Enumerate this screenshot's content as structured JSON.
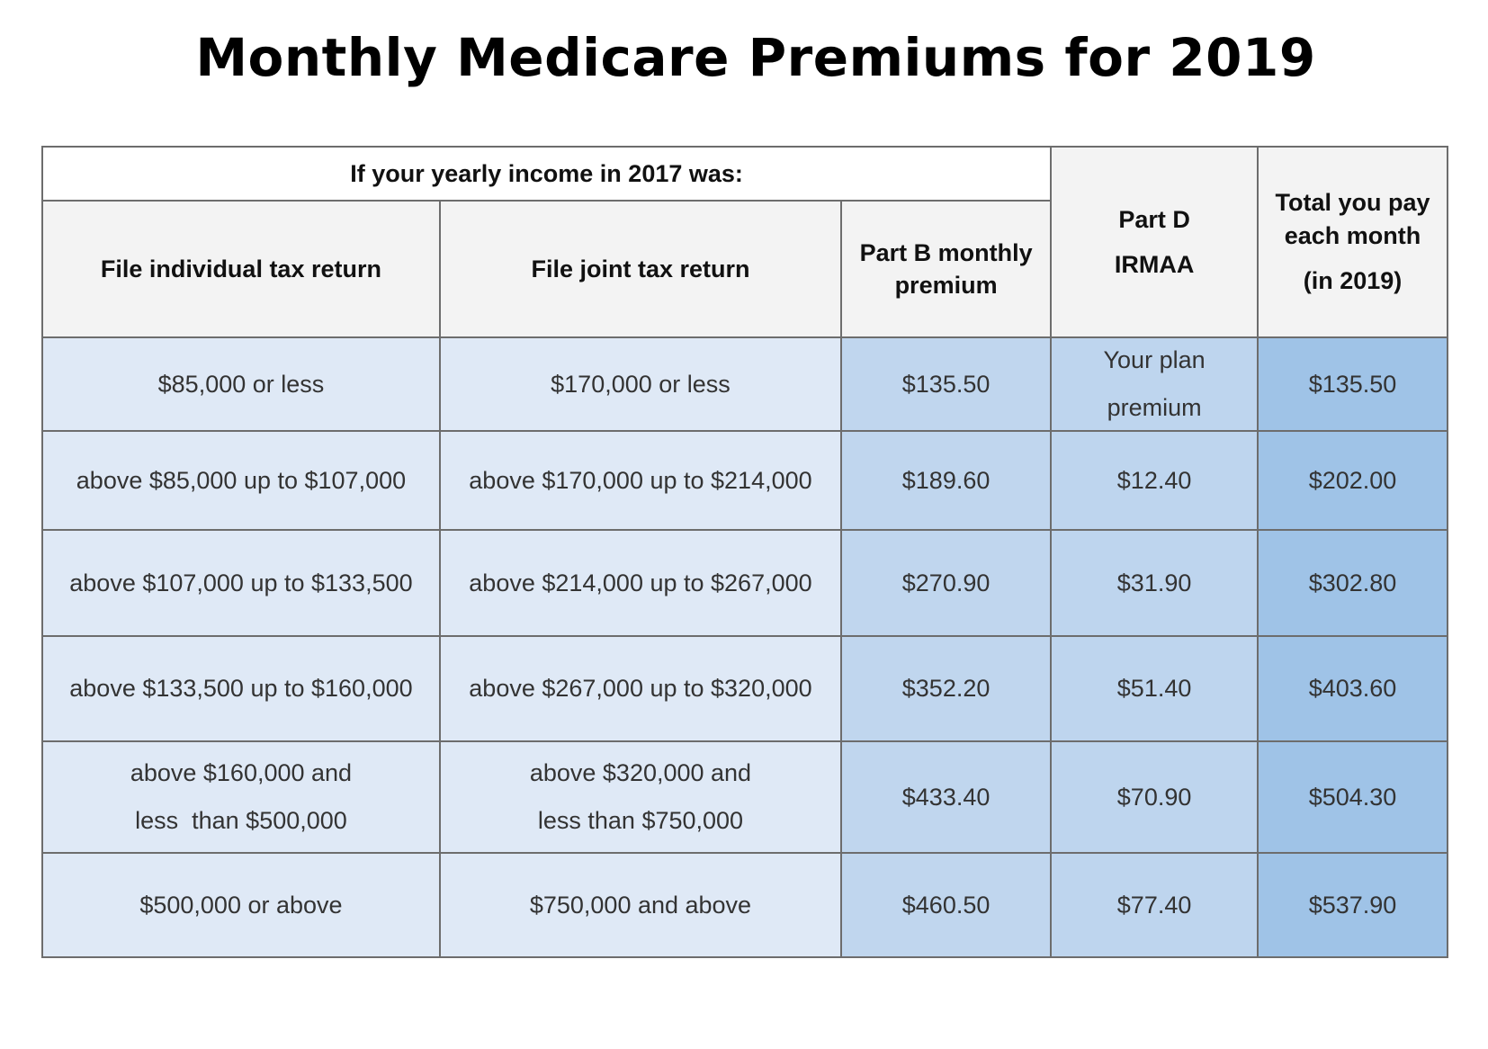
{
  "title": "Monthly Medicare Premiums for 2019",
  "table": {
    "income_group_header": "If your yearly income in 2017 was:",
    "headers": {
      "individual": "File individual tax return",
      "joint": "File joint tax return",
      "part_b": "Part B monthly premium",
      "part_d_line1": "Part D",
      "part_d_line2": "IRMAA",
      "total_line1": "Total you pay each month",
      "total_line2": "(in 2019)"
    },
    "rows": [
      {
        "individual": "$85,000 or less",
        "joint": "$170,000 or less",
        "part_b": "$135.50",
        "part_d_line1": "Your plan",
        "part_d_line2": "premium",
        "total": "$135.50"
      },
      {
        "individual": "above $85,000 up to $107,000",
        "joint": "above $170,000 up to $214,000",
        "part_b": "$189.60",
        "part_d": "$12.40",
        "total": "$202.00"
      },
      {
        "individual": "above $107,000 up to $133,500",
        "joint": "above $214,000 up to $267,000",
        "part_b": "$270.90",
        "part_d": "$31.90",
        "total": "$302.80"
      },
      {
        "individual": "above $133,500 up to $160,000",
        "joint": "above $267,000 up to $320,000",
        "part_b": "$352.20",
        "part_d": "$51.40",
        "total": "$403.60"
      },
      {
        "individual_line1": "above $160,000 and",
        "individual_line2": "less  than $500,000",
        "joint_line1": "above $320,000 and",
        "joint_line2": "less than $750,000",
        "part_b": "$433.40",
        "part_d": "$70.90",
        "total": "$504.30"
      },
      {
        "individual": "$500,000 or above",
        "joint": "$750,000 and above",
        "part_b": "$460.50",
        "part_d": "$77.40",
        "total": "$537.90"
      }
    ]
  },
  "colors": {
    "header_bg": "#f3f3f3",
    "income_bg": "#dfe9f6",
    "part_b_bg": "#c0d6ee",
    "part_d_bg": "#bed5ee",
    "total_bg": "#9fc3e7",
    "border": "#6d6d6d"
  }
}
